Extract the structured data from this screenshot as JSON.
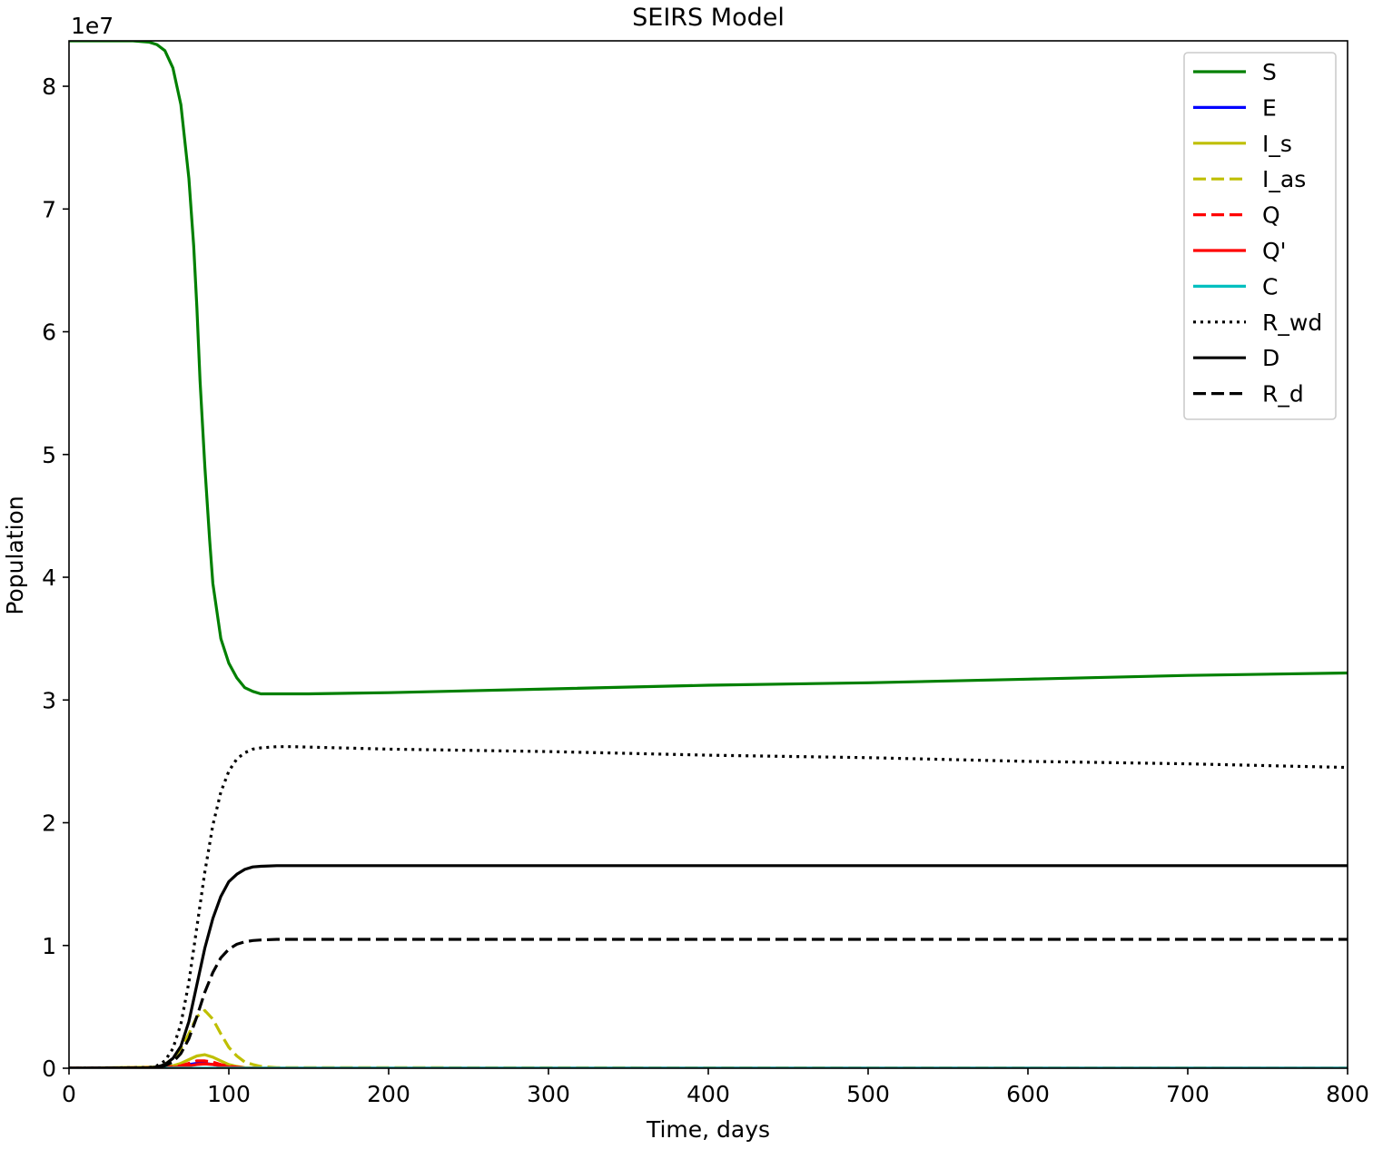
{
  "chart_data": {
    "type": "line",
    "title": "SEIRS Model",
    "xlabel": "Time, days",
    "ylabel": "Population",
    "y_offset_label": "1e7",
    "xlim": [
      0,
      800
    ],
    "ylim": [
      0,
      8.37
    ],
    "x_ticks": [
      0,
      100,
      200,
      300,
      400,
      500,
      600,
      700,
      800
    ],
    "x_tick_labels": [
      "0",
      "100",
      "200",
      "300",
      "400",
      "500",
      "600",
      "700",
      "800"
    ],
    "y_ticks": [
      0,
      1,
      2,
      3,
      4,
      5,
      6,
      7,
      8
    ],
    "y_tick_labels": [
      "0",
      "1",
      "2",
      "3",
      "4",
      "5",
      "6",
      "7",
      "8"
    ],
    "grid": false,
    "legend_position": "top-right",
    "y_units_note": "values in units of 1e7",
    "series": [
      {
        "name": "S",
        "color": "#008000",
        "style": "solid",
        "x": [
          0,
          40,
          50,
          55,
          60,
          65,
          70,
          75,
          78,
          80,
          82,
          85,
          88,
          90,
          95,
          100,
          105,
          110,
          115,
          120,
          130,
          140,
          150,
          200,
          300,
          400,
          500,
          600,
          700,
          800
        ],
        "y": [
          8.37,
          8.37,
          8.36,
          8.34,
          8.29,
          8.15,
          7.85,
          7.25,
          6.7,
          6.2,
          5.6,
          4.9,
          4.3,
          3.95,
          3.5,
          3.3,
          3.18,
          3.1,
          3.07,
          3.05,
          3.05,
          3.05,
          3.05,
          3.06,
          3.09,
          3.12,
          3.14,
          3.17,
          3.2,
          3.22
        ]
      },
      {
        "name": "E",
        "color": "#0000ff",
        "style": "solid",
        "x": [
          0,
          60,
          70,
          75,
          80,
          85,
          90,
          95,
          100,
          110,
          120,
          800
        ],
        "y": [
          0,
          0.005,
          0.02,
          0.03,
          0.04,
          0.04,
          0.03,
          0.02,
          0.01,
          0.003,
          0,
          0
        ]
      },
      {
        "name": "I_s",
        "color": "#bfbf00",
        "style": "solid",
        "x": [
          0,
          60,
          65,
          70,
          75,
          80,
          85,
          90,
          95,
          100,
          105,
          110,
          120,
          800
        ],
        "y": [
          0,
          0.01,
          0.02,
          0.04,
          0.07,
          0.1,
          0.11,
          0.09,
          0.06,
          0.03,
          0.015,
          0.005,
          0,
          0
        ]
      },
      {
        "name": "I_as",
        "color": "#bfbf00",
        "style": "dashed",
        "x": [
          0,
          55,
          60,
          65,
          70,
          75,
          80,
          85,
          90,
          95,
          100,
          105,
          110,
          115,
          120,
          130,
          800
        ],
        "y": [
          0,
          0.005,
          0.03,
          0.08,
          0.16,
          0.28,
          0.42,
          0.47,
          0.4,
          0.28,
          0.17,
          0.1,
          0.05,
          0.03,
          0.015,
          0.005,
          0
        ]
      },
      {
        "name": "Q",
        "color": "#ff0000",
        "style": "dashed",
        "x": [
          0,
          60,
          70,
          75,
          80,
          85,
          90,
          95,
          100,
          110,
          120,
          800
        ],
        "y": [
          0,
          0.005,
          0.02,
          0.04,
          0.06,
          0.06,
          0.05,
          0.03,
          0.015,
          0.003,
          0,
          0
        ]
      },
      {
        "name": "Q'",
        "color": "#ff0000",
        "style": "solid",
        "x": [
          0,
          60,
          70,
          75,
          80,
          85,
          90,
          95,
          100,
          110,
          120,
          800
        ],
        "y": [
          0,
          0.003,
          0.01,
          0.02,
          0.03,
          0.035,
          0.03,
          0.02,
          0.01,
          0.002,
          0,
          0
        ]
      },
      {
        "name": "C",
        "color": "#00bfbf",
        "style": "solid",
        "x": [
          0,
          800
        ],
        "y": [
          0,
          0
        ]
      },
      {
        "name": "R_wd",
        "color": "#000000",
        "style": "dotted",
        "x": [
          0,
          50,
          55,
          60,
          65,
          70,
          75,
          80,
          85,
          90,
          95,
          100,
          105,
          110,
          115,
          120,
          130,
          140,
          200,
          300,
          400,
          500,
          600,
          700,
          800
        ],
        "y": [
          0,
          0.005,
          0.02,
          0.06,
          0.16,
          0.36,
          0.7,
          1.15,
          1.6,
          1.98,
          2.25,
          2.42,
          2.52,
          2.57,
          2.6,
          2.61,
          2.62,
          2.62,
          2.6,
          2.58,
          2.55,
          2.53,
          2.5,
          2.48,
          2.45
        ]
      },
      {
        "name": "D",
        "color": "#000000",
        "style": "solid",
        "x": [
          0,
          50,
          55,
          60,
          65,
          70,
          75,
          80,
          85,
          90,
          95,
          100,
          105,
          110,
          115,
          120,
          130,
          140,
          200,
          800
        ],
        "y": [
          0,
          0.003,
          0.01,
          0.03,
          0.08,
          0.18,
          0.38,
          0.68,
          0.98,
          1.22,
          1.4,
          1.52,
          1.58,
          1.62,
          1.64,
          1.645,
          1.65,
          1.65,
          1.65,
          1.65
        ]
      },
      {
        "name": "R_d",
        "color": "#000000",
        "style": "dashed",
        "x": [
          0,
          50,
          55,
          60,
          65,
          70,
          75,
          80,
          85,
          90,
          95,
          100,
          105,
          110,
          115,
          120,
          130,
          140,
          200,
          800
        ],
        "y": [
          0,
          0.002,
          0.007,
          0.02,
          0.05,
          0.12,
          0.24,
          0.42,
          0.62,
          0.78,
          0.9,
          0.97,
          1.01,
          1.03,
          1.04,
          1.045,
          1.05,
          1.05,
          1.05,
          1.05
        ]
      }
    ]
  }
}
